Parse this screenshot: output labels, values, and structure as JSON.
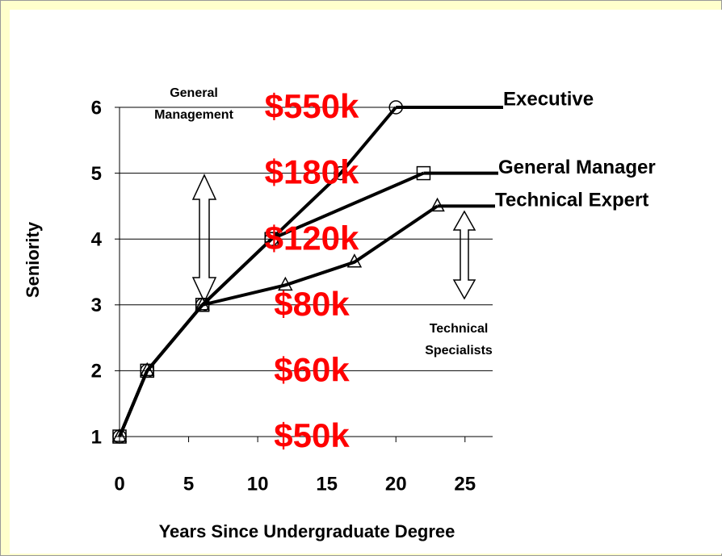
{
  "chart_data": {
    "type": "line",
    "xlabel": "Years Since Undergraduate Degree",
    "ylabel": "Seniority",
    "xlim": [
      0,
      27
    ],
    "ylim": [
      1,
      6
    ],
    "xticks": [
      0,
      5,
      10,
      15,
      20,
      25
    ],
    "yticks": [
      1,
      2,
      3,
      4,
      5,
      6
    ],
    "grid": true,
    "salary_labels": [
      "$50k",
      "$60k",
      "$80k",
      "$120k",
      "$180k",
      "$550k"
    ],
    "salary_color": "#ff0000",
    "series": [
      {
        "name": "Executive",
        "color": "#000000",
        "marker": "circle",
        "x": [
          0,
          2,
          6,
          11,
          16,
          20
        ],
        "values": [
          1,
          2,
          3,
          4,
          5,
          6
        ]
      },
      {
        "name": "General Manager",
        "color": "#000000",
        "marker": "square",
        "x": [
          0,
          2,
          6,
          11,
          22
        ],
        "values": [
          1,
          2,
          3,
          4,
          5
        ]
      },
      {
        "name": "Technical Expert",
        "color": "#000000",
        "marker": "triangle",
        "x": [
          0,
          2,
          6,
          12,
          17,
          23
        ],
        "values": [
          1,
          2,
          3,
          3.3,
          3.65,
          4.5
        ]
      }
    ],
    "annotations": [
      {
        "lines": [
          "General",
          "Management"
        ]
      },
      {
        "lines": [
          "Technical",
          "Specialists"
        ]
      }
    ]
  }
}
